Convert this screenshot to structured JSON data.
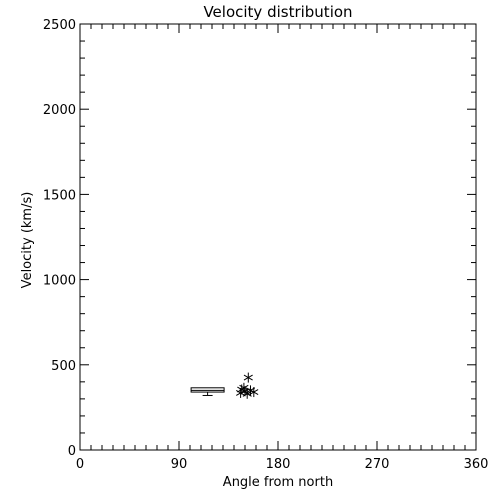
{
  "chart_data": {
    "type": "scatter",
    "title": "Velocity distribution",
    "xlabel": "Angle from north",
    "ylabel": "Velocity (km/s)",
    "xlim": [
      0,
      360
    ],
    "ylim": [
      0,
      2500
    ],
    "xticks": [
      0,
      90,
      180,
      270,
      360
    ],
    "yticks": [
      0,
      500,
      1000,
      1500,
      2000,
      2500
    ],
    "x_minor_step": 10,
    "y_minor_step": 100,
    "grid": false,
    "points": [
      {
        "x": 147,
        "y": 355
      },
      {
        "x": 150,
        "y": 345
      },
      {
        "x": 152,
        "y": 330
      },
      {
        "x": 146,
        "y": 335
      },
      {
        "x": 155,
        "y": 350
      },
      {
        "x": 149,
        "y": 365
      },
      {
        "x": 158,
        "y": 340
      },
      {
        "x": 153,
        "y": 425
      }
    ],
    "boxplot": {
      "x_min": 101,
      "x_max": 131,
      "q1": 340,
      "median": 350,
      "q3": 365,
      "whisker_low": 320,
      "whisker_high": 365
    }
  }
}
